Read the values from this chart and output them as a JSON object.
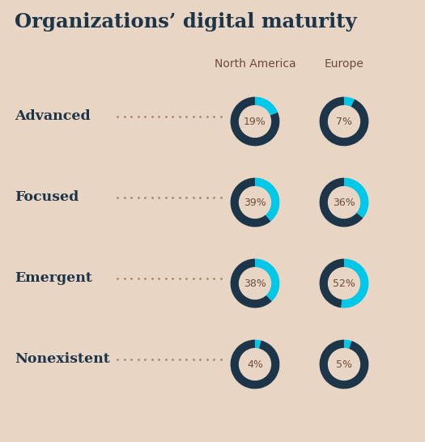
{
  "title": "Organizations’ digital maturity",
  "background_color": "#e8d5c4",
  "categories": [
    "Advanced",
    "Focused",
    "Emergent",
    "Nonexistent"
  ],
  "col_headers": [
    "North America",
    "Europe"
  ],
  "north_america": [
    19,
    39,
    38,
    4
  ],
  "europe": [
    7,
    36,
    52,
    5
  ],
  "dark_color": "#1d3549",
  "cyan_color": "#00c8e8",
  "text_color": "#6b4c38",
  "title_color": "#1d3549",
  "label_color": "#1d3549",
  "dot_color": "#a08060",
  "pct_text_color": "#6b4c38"
}
